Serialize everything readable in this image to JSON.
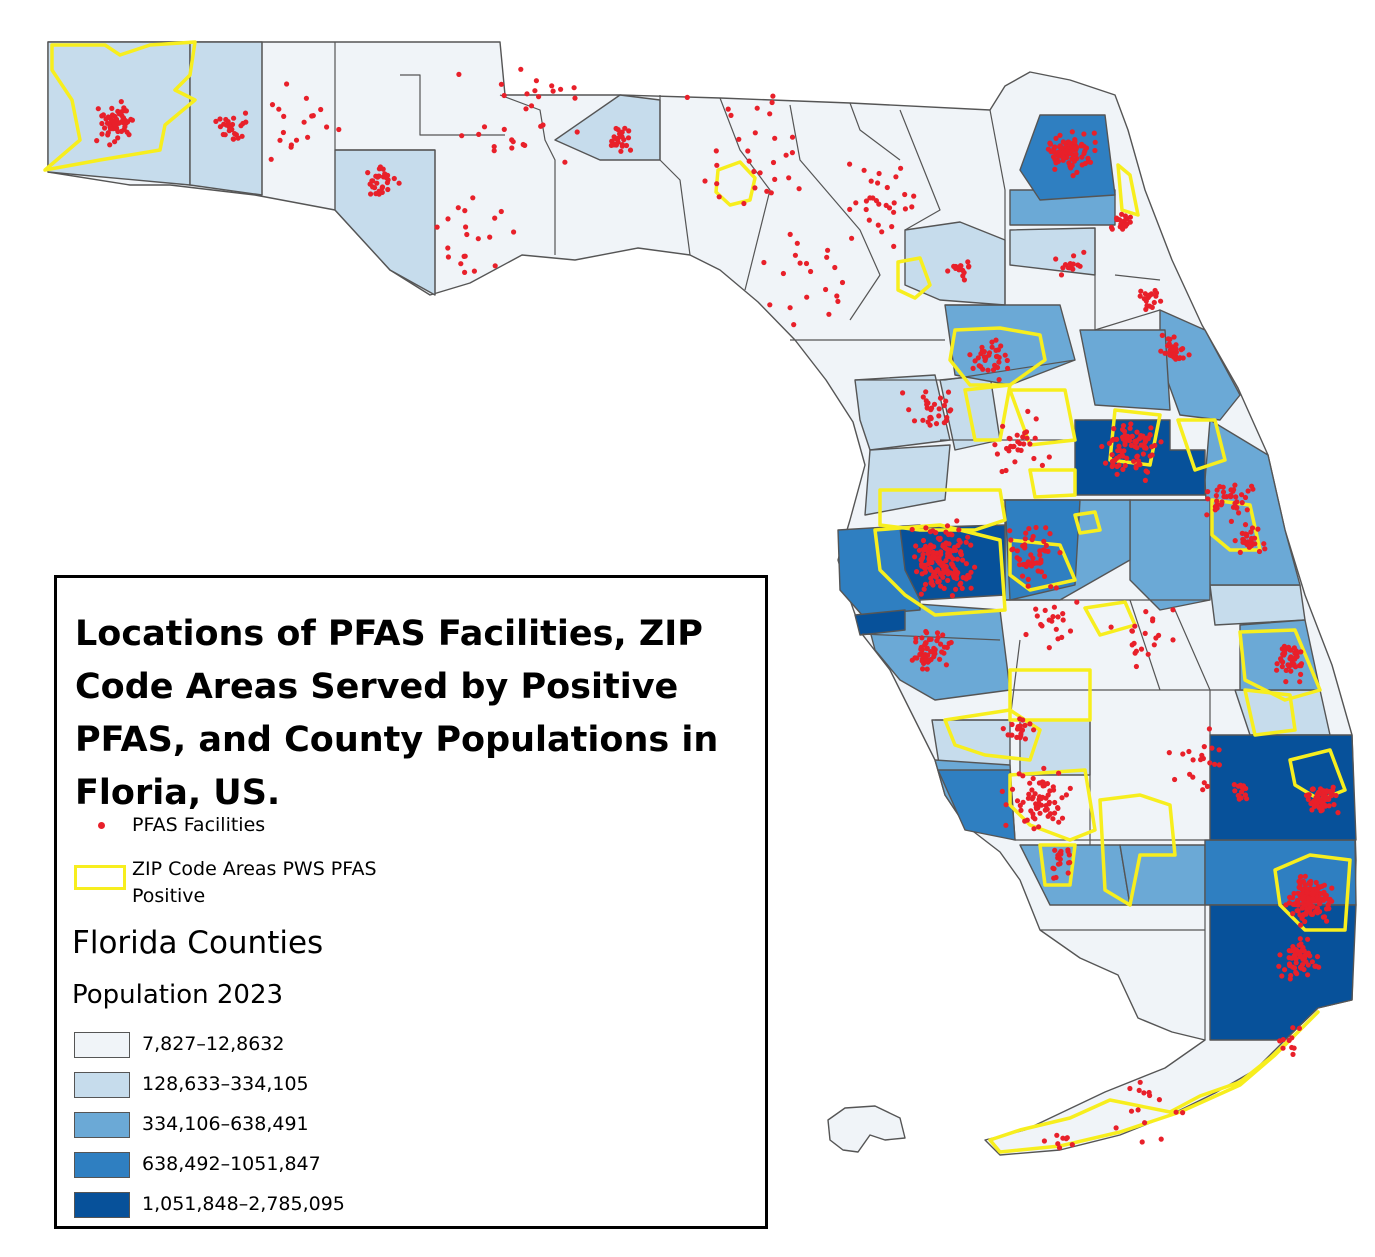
{
  "legend": {
    "title": "Locations of PFAS Facilities, ZIP Code Areas Served by Positive PFAS, and County Populations in Floria, US.",
    "facilities_label": "PFAS Facilities",
    "zip_label": "ZIP Code Areas PWS PFAS Positive",
    "counties_heading": "Florida Counties",
    "population_heading": "Population 2023",
    "classes": [
      {
        "label": "7,827–12,8632",
        "color": "#f0f4f8"
      },
      {
        "label": "128,633–334,105",
        "color": "#c6dcec"
      },
      {
        "label": "334,106–638,491",
        "color": "#6ba9d6"
      },
      {
        "label": "638,492–1051,847",
        "color": "#2f7fc1"
      },
      {
        "label": "1,051,848–2,785,095",
        "color": "#07519a"
      }
    ]
  },
  "colors": {
    "facility_dot": "#e8202a",
    "zip_outline": "#f7ee1e",
    "county_border": "#555555"
  }
}
